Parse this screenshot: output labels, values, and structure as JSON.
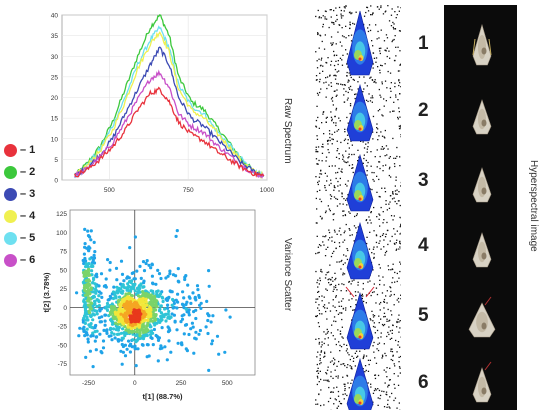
{
  "legend": {
    "items": [
      {
        "label": "– 1",
        "color": "#e8323c"
      },
      {
        "label": "– 2",
        "color": "#3cc83c"
      },
      {
        "label": "– 3",
        "color": "#3c4ab4"
      },
      {
        "label": "– 4",
        "color": "#f0f050"
      },
      {
        "label": "– 5",
        "color": "#6ee0f0"
      },
      {
        "label": "– 6",
        "color": "#c850c8"
      }
    ]
  },
  "labels": {
    "raw_spectrum": "Raw Spectrum",
    "variance_scatter": "Variance Scatter",
    "hyperspectral_image": "Hyperspectral image"
  },
  "sample_numbers": [
    "1",
    "2",
    "3",
    "4",
    "5",
    "6"
  ],
  "chart_data": [
    {
      "type": "line",
      "xlim": [
        350,
        1000
      ],
      "ylim": [
        0,
        40
      ],
      "x_ticks": [
        "500",
        "750",
        "1000"
      ],
      "y_ticks": [
        "0",
        "5",
        "10",
        "15",
        "20",
        "25",
        "30",
        "35",
        "40"
      ],
      "grid": true,
      "x": [
        390,
        430,
        470,
        510,
        550,
        590,
        630,
        660,
        690,
        720,
        760,
        800,
        840,
        880,
        920,
        960,
        990
      ],
      "series": [
        {
          "name": "– 1",
          "color": "#e8323c",
          "values": [
            1,
            2.5,
            5,
            8,
            12,
            17,
            21,
            22,
            19,
            14,
            11,
            9.5,
            7,
            5,
            3,
            1.5,
            1
          ]
        },
        {
          "name": "– 2",
          "color": "#3cc83c",
          "values": [
            1,
            4,
            8,
            14,
            22,
            30,
            37,
            40,
            35,
            25,
            19,
            17,
            13,
            9,
            5,
            2,
            1
          ]
        },
        {
          "name": "– 3",
          "color": "#3c4ab4",
          "values": [
            1,
            3,
            6,
            10,
            16,
            22,
            28,
            32,
            28,
            20,
            15,
            13,
            10,
            7,
            4,
            2,
            1
          ]
        },
        {
          "name": "– 4",
          "color": "#f0f050",
          "values": [
            1,
            3.5,
            7,
            12,
            19,
            27,
            33,
            36,
            31,
            22,
            17,
            15,
            11.5,
            8,
            4.5,
            2,
            1
          ]
        },
        {
          "name": "– 5",
          "color": "#6ee0f0",
          "values": [
            1,
            3.5,
            7.5,
            13,
            20,
            28,
            34,
            37,
            32,
            23,
            18,
            16,
            12,
            8.5,
            5,
            2,
            1
          ]
        },
        {
          "name": "– 6",
          "color": "#c850c8",
          "values": [
            1,
            2.8,
            5.5,
            9,
            14,
            19.5,
            24.5,
            26,
            22.5,
            16,
            13,
            11.5,
            8.5,
            6,
            3.5,
            1.5,
            1
          ]
        }
      ]
    },
    {
      "type": "scatter",
      "xlabel": "t[1] (88.7%)",
      "ylabel": "t[2] (3.78%)",
      "xlim": [
        -350,
        650
      ],
      "ylim": [
        -90,
        130
      ],
      "x_ticks": [
        "-250",
        "0",
        "250",
        "500"
      ],
      "y_ticks": [
        "-75",
        "-50",
        "-25",
        "0",
        "25",
        "50",
        "75",
        "100",
        "125"
      ],
      "grid": false,
      "density_colors": [
        "#1fa3e8",
        "#2ec4d6",
        "#7ad36a",
        "#f2e73a",
        "#f5a623",
        "#e8391c"
      ]
    }
  ]
}
